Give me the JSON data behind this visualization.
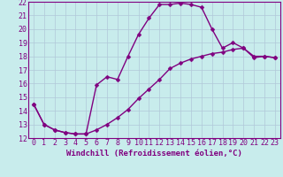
{
  "xlabel": "Windchill (Refroidissement éolien,°C)",
  "bg_color": "#c8ecec",
  "line_color": "#800080",
  "grid_color": "#b0c8d8",
  "xlim": [
    -0.5,
    23.5
  ],
  "ylim": [
    12,
    22
  ],
  "xticks": [
    0,
    1,
    2,
    3,
    4,
    5,
    6,
    7,
    8,
    9,
    10,
    11,
    12,
    13,
    14,
    15,
    16,
    17,
    18,
    19,
    20,
    21,
    22,
    23
  ],
  "yticks": [
    12,
    13,
    14,
    15,
    16,
    17,
    18,
    19,
    20,
    21,
    22
  ],
  "line1_x": [
    0,
    1,
    2,
    3,
    4,
    5,
    6,
    7,
    8,
    9,
    10,
    11,
    12,
    13,
    14,
    15,
    16,
    17,
    18,
    19,
    20,
    21,
    22,
    23
  ],
  "line1_y": [
    14.5,
    13.0,
    12.6,
    12.4,
    12.3,
    12.3,
    15.9,
    16.5,
    16.3,
    18.0,
    19.6,
    20.8,
    21.8,
    21.8,
    21.9,
    21.8,
    21.6,
    20.0,
    18.6,
    19.0,
    18.6,
    18.0,
    18.0,
    17.9
  ],
  "line2_x": [
    0,
    1,
    2,
    3,
    4,
    5,
    6,
    7,
    8,
    9,
    10,
    11,
    12,
    13,
    14,
    15,
    16,
    17,
    18,
    19,
    20,
    21,
    22,
    23
  ],
  "line2_y": [
    14.5,
    13.0,
    12.6,
    12.4,
    12.3,
    12.3,
    12.6,
    13.0,
    13.5,
    14.1,
    14.9,
    15.6,
    16.3,
    17.1,
    17.5,
    17.8,
    18.0,
    18.2,
    18.3,
    18.5,
    18.6,
    17.9,
    18.0,
    17.9
  ],
  "markersize": 2.5,
  "linewidth": 1.0,
  "fontsize_label": 6.5,
  "fontsize_tick": 6.0
}
